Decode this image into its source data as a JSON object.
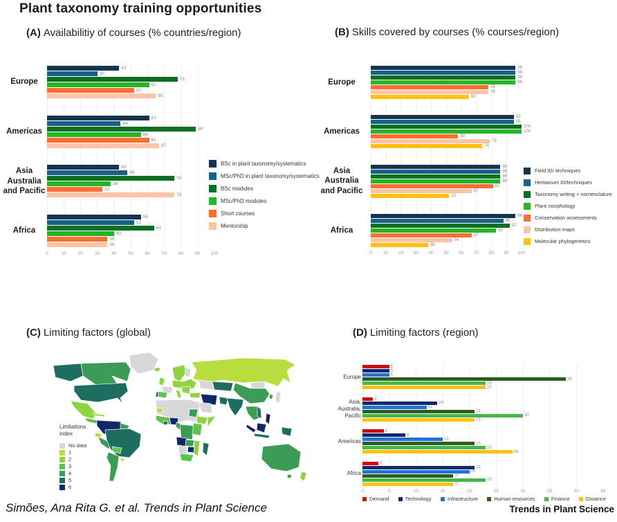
{
  "page": {
    "title": "Plant taxonomy training opportunities",
    "citation": "Simões, Ana Rita G. et al. Trends in Plant Science",
    "journal": "Trends in Plant Science"
  },
  "chart_data": [
    {
      "id": "A",
      "tag": "(A)",
      "title": "Availabilitiy of courses (% countries/region)",
      "type": "bar",
      "orientation": "horizontal",
      "grid": true,
      "legend_position": "right",
      "categories": [
        "Europe",
        "Americas",
        "Asia\nAustralia\nand Pacific",
        "Africa"
      ],
      "series": [
        {
          "name": "BSc in plant taxonomy/systematics",
          "color": "#14344f",
          "values": [
            43,
            61,
            43,
            56
          ]
        },
        {
          "name": "MSc/PhD in plant taxonomy/systematics",
          "color": "#17618c",
          "values": [
            30,
            44,
            48,
            52
          ]
        },
        {
          "name": "BSc modules",
          "color": "#0b6e21",
          "values": [
            78,
            89,
            76,
            64
          ]
        },
        {
          "name": "MSc/PhD modules",
          "color": "#28b428",
          "values": [
            61,
            56,
            38,
            40
          ]
        },
        {
          "name": "Short courses",
          "color": "#fa6e32",
          "values": [
            52,
            61,
            33,
            36
          ]
        },
        {
          "name": "Mentorship",
          "color": "#fcc3a6",
          "values": [
            65,
            67,
            76,
            36
          ]
        }
      ],
      "xlim": [
        0,
        100
      ],
      "xticks": [
        0,
        10,
        20,
        30,
        40,
        50,
        60,
        70,
        80,
        90,
        100
      ]
    },
    {
      "id": "B",
      "tag": "(B)",
      "title": "Skills covered by courses (% courses/region)",
      "type": "bar",
      "orientation": "horizontal",
      "grid": true,
      "legend_position": "right",
      "categories": [
        "Europe",
        "Americas",
        "Asia\nAustralia\nand Pacific",
        "Africa"
      ],
      "series": [
        {
          "name": "Field ID/ techniques",
          "color": "#14344f",
          "values": [
            96,
            95,
            86,
            96
          ]
        },
        {
          "name": "Herbarium ID/techniques",
          "color": "#17618c",
          "values": [
            96,
            95,
            86,
            88
          ]
        },
        {
          "name": "Taxonomy writing + nomenclature",
          "color": "#0b6e21",
          "values": [
            96,
            100,
            86,
            92
          ]
        },
        {
          "name": "Plant morphology",
          "color": "#28b428",
          "values": [
            96,
            100,
            86,
            83
          ]
        },
        {
          "name": "Conservation assessments",
          "color": "#fa6e32",
          "values": [
            78,
            58,
            81,
            67
          ]
        },
        {
          "name": "Distribution maps",
          "color": "#fcc3a6",
          "values": [
            78,
            79,
            67,
            54
          ]
        },
        {
          "name": "Molecular phylogenetics",
          "color": "#fec20e",
          "values": [
            65,
            74,
            52,
            38
          ]
        }
      ],
      "xlim": [
        0,
        100
      ],
      "xticks": [
        0,
        10,
        20,
        30,
        40,
        50,
        60,
        70,
        80,
        90,
        100
      ]
    },
    {
      "id": "C",
      "tag": "(C)",
      "title": "Limiting factors (global)",
      "type": "heatmap",
      "subtype": "world-choropleth",
      "legend_title": "Limitations\nindex",
      "classes": [
        {
          "label": "No data",
          "color": "#d8d8d8"
        },
        {
          "label": "1",
          "color": "#b9dc3e"
        },
        {
          "label": "2",
          "color": "#8ed441"
        },
        {
          "label": "3",
          "color": "#5ec34c"
        },
        {
          "label": "4",
          "color": "#3c9b54"
        },
        {
          "label": "5",
          "color": "#1d6e60"
        },
        {
          "label": "6",
          "color": "#12266b"
        }
      ],
      "regions": [
        [
          "greenland",
          "No data"
        ],
        [
          "alaska",
          "5"
        ],
        [
          "canada",
          "4"
        ],
        [
          "usa",
          "5"
        ],
        [
          "mexico",
          "2"
        ],
        [
          "central-america",
          "3"
        ],
        [
          "caribbean",
          "2"
        ],
        [
          "colombia-venezuela",
          "6"
        ],
        [
          "guyanas",
          "4"
        ],
        [
          "ecuador",
          "1"
        ],
        [
          "peru",
          "4"
        ],
        [
          "brazil",
          "5"
        ],
        [
          "bolivia",
          "3"
        ],
        [
          "uruguay",
          "1"
        ],
        [
          "argentina-chile",
          "4"
        ],
        [
          "iceland",
          "2"
        ],
        [
          "uk",
          "2"
        ],
        [
          "scandinavia",
          "2"
        ],
        [
          "finland",
          "No data"
        ],
        [
          "france",
          "No data"
        ],
        [
          "iberia",
          "3"
        ],
        [
          "portugal",
          "5"
        ],
        [
          "central-europe",
          "2"
        ],
        [
          "italy",
          "2"
        ],
        [
          "balkans",
          "2"
        ],
        [
          "turkey",
          "2"
        ],
        [
          "russia",
          "1"
        ],
        [
          "central-asia",
          "5"
        ],
        [
          "kazakhstan-west",
          "No data"
        ],
        [
          "mongolia",
          "No data"
        ],
        [
          "china",
          "4"
        ],
        [
          "japan",
          "No data"
        ],
        [
          "korea",
          "4"
        ],
        [
          "iran-iraq",
          "6"
        ],
        [
          "arabia",
          "No data"
        ],
        [
          "pakistan",
          "5"
        ],
        [
          "india",
          "5"
        ],
        [
          "se-asia",
          "4"
        ],
        [
          "vietnam",
          "5"
        ],
        [
          "philippines",
          "6"
        ],
        [
          "sumatra",
          "6"
        ],
        [
          "borneo",
          "6"
        ],
        [
          "java",
          "5"
        ],
        [
          "new-guinea",
          "5"
        ],
        [
          "north-africa",
          "No data"
        ],
        [
          "mauritania",
          "1"
        ],
        [
          "sudan",
          "4"
        ],
        [
          "ethiopia",
          "2"
        ],
        [
          "somalia",
          "2"
        ],
        [
          "west-africa",
          "3"
        ],
        [
          "ivory-coast",
          "5"
        ],
        [
          "nigeria",
          "6"
        ],
        [
          "cameroon",
          "4"
        ],
        [
          "drc",
          "4"
        ],
        [
          "east-africa",
          "3"
        ],
        [
          "angola",
          "6"
        ],
        [
          "zambia",
          "4"
        ],
        [
          "zimbabwe",
          "6"
        ],
        [
          "botswana-namibia",
          "No data"
        ],
        [
          "mozambique",
          "2"
        ],
        [
          "south-africa",
          "3"
        ],
        [
          "madagascar",
          "5"
        ],
        [
          "australia",
          "4"
        ],
        [
          "tasmania",
          "4"
        ],
        [
          "new-zealand",
          "2"
        ]
      ]
    },
    {
      "id": "D",
      "tag": "(D)",
      "title": "Limiting factors (region)",
      "type": "bar",
      "orientation": "horizontal",
      "grid": true,
      "legend_position": "bottom",
      "categories": [
        "Europe",
        "Asia,\nAustralia,\nPacific",
        "Americas",
        "Africa"
      ],
      "series": [
        {
          "name": "Demand",
          "color": "#cc0a11",
          "values": [
            5,
            2,
            4,
            3
          ]
        },
        {
          "name": "Technology",
          "color": "#13286d",
          "values": [
            5,
            14,
            8,
            21
          ]
        },
        {
          "name": "Infrastructure",
          "color": "#2273d3",
          "values": [
            5,
            12,
            15,
            20
          ]
        },
        {
          "name": "Human resources",
          "color": "#2b5d1d",
          "values": [
            38,
            21,
            21,
            17
          ]
        },
        {
          "name": "Finance",
          "color": "#48b64c",
          "values": [
            23,
            30,
            23,
            23
          ]
        },
        {
          "name": "Distance",
          "color": "#fec20e",
          "values": [
            23,
            21,
            28,
            17
          ]
        }
      ],
      "xlim": [
        0,
        45
      ],
      "xticks": [
        0,
        5,
        10,
        15,
        20,
        25,
        30,
        35,
        40,
        45
      ]
    }
  ]
}
